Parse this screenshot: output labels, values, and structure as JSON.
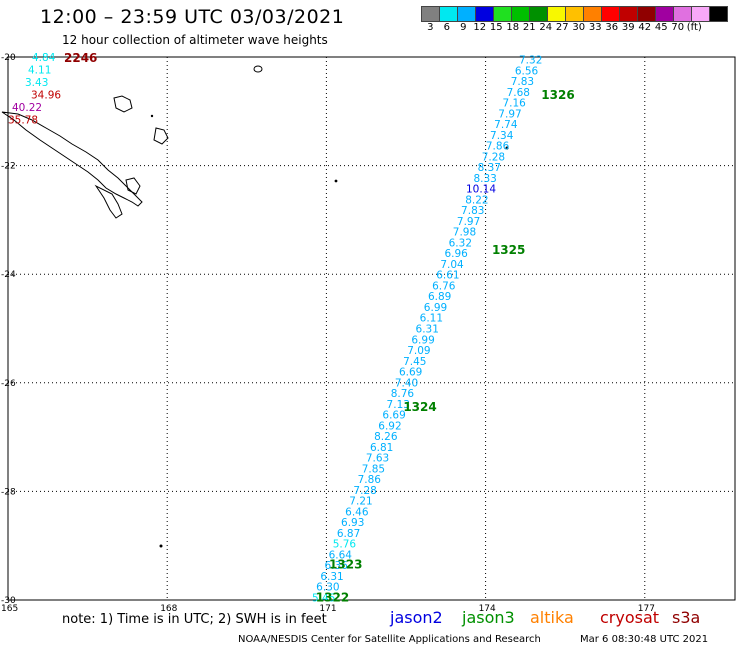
{
  "title": "12:00 – 23:59 UTC 03/03/2021",
  "subtitle": "12 hour collection of altimeter wave heights",
  "colorbar": {
    "colors": [
      "#808080",
      "#00e8f0",
      "#00b0ff",
      "#0000e0",
      "#20e020",
      "#00c000",
      "#009000",
      "#f8f800",
      "#ffc000",
      "#ff8000",
      "#ff0000",
      "#c00000",
      "#900000",
      "#a000a0",
      "#e070e0",
      "#f8a8f8",
      "#000000"
    ],
    "tick_labels": [
      "3",
      "6",
      "9",
      "12",
      "15",
      "18",
      "21",
      "24",
      "27",
      "30",
      "33",
      "36",
      "39",
      "42",
      "45",
      "70",
      "(ft)"
    ]
  },
  "axes": {
    "lat_labels": [
      "-20",
      "-22",
      "-24",
      "-26",
      "-28",
      "-30"
    ],
    "lat_values": [
      -20,
      -22,
      -24,
      -26,
      -28,
      -30
    ],
    "lon_labels": [
      "165",
      "168",
      "171",
      "174",
      "177"
    ],
    "lon_values": [
      165,
      168,
      171,
      174,
      177
    ],
    "lon_range": [
      165,
      178.7
    ],
    "lat_range": [
      -20,
      -30
    ]
  },
  "chart_data": {
    "type": "scatter",
    "track": {
      "values": [
        "7.32",
        "6.56",
        "7.83",
        "7.68",
        "7.16",
        "7.97",
        "7.74",
        "7.34",
        "7.86",
        "7.28",
        "8.37",
        "8.33",
        "10.14",
        "8.22",
        "7.83",
        "7.97",
        "7.98",
        "6.32",
        "6.96",
        "7.04",
        "6.61",
        "6.76",
        "6.89",
        "6.99",
        "6.11",
        "6.31",
        "6.99",
        "7.09",
        "7.45",
        "6.69",
        "7.40",
        "8.76",
        "7.13",
        "6.69",
        "6.92",
        "8.26",
        "6.81",
        "7.63",
        "7.85",
        "7.86",
        "7.28",
        "7.21",
        "6.46",
        "6.93",
        "6.87",
        "5.76",
        "6.64",
        "6.36",
        "6.31",
        "6.30",
        "5.45"
      ],
      "colors": [
        "#00b0ff",
        "#00b0ff",
        "#00b0ff",
        "#00b0ff",
        "#00b0ff",
        "#00b0ff",
        "#00b0ff",
        "#00b0ff",
        "#00b0ff",
        "#00b0ff",
        "#00b0ff",
        "#00b0ff",
        "#0000e0",
        "#00b0ff",
        "#00b0ff",
        "#00b0ff",
        "#00b0ff",
        "#00b0ff",
        "#00b0ff",
        "#00b0ff",
        "#00b0ff",
        "#00b0ff",
        "#00b0ff",
        "#00b0ff",
        "#00b0ff",
        "#00b0ff",
        "#00b0ff",
        "#00b0ff",
        "#00b0ff",
        "#00b0ff",
        "#00b0ff",
        "#00b0ff",
        "#00b0ff",
        "#00b0ff",
        "#00b0ff",
        "#00b0ff",
        "#00b0ff",
        "#00b0ff",
        "#00b0ff",
        "#00b0ff",
        "#00b0ff",
        "#00b0ff",
        "#00b0ff",
        "#00b0ff",
        "#00b0ff",
        "#00e8f0",
        "#00b0ff",
        "#00b0ff",
        "#00b0ff",
        "#00b0ff",
        "#00e8f0"
      ],
      "lat_start": -20.05,
      "lat_end": -29.95,
      "lon_start": 174.85,
      "lon_end": 170.95
    },
    "time_labels": [
      {
        "text": "1326",
        "lon": 175.05,
        "lat": -20.7,
        "color": "#008000"
      },
      {
        "text": "1325",
        "lon": 174.12,
        "lat": -23.55,
        "color": "#008000"
      },
      {
        "text": "1324",
        "lon": 172.45,
        "lat": -26.45,
        "color": "#008000"
      },
      {
        "text": "1323",
        "lon": 171.05,
        "lat": -29.35,
        "color": "#008000"
      },
      {
        "text": "1322",
        "lon": 170.8,
        "lat": -29.95,
        "color": "#008000"
      }
    ],
    "west_track": {
      "values": [
        "4.84",
        "4.11",
        "3.43",
        "34.96",
        "40.22",
        "35.78"
      ],
      "colors": [
        "#00e8f0",
        "#00e8f0",
        "#00e8f0",
        "#c00000",
        "#a000a0",
        "#c00000"
      ],
      "time": {
        "text": "2246",
        "color": "#900000"
      }
    }
  },
  "note": "note:  1) Time is in UTC;  2) SWH is in feet",
  "missions": [
    {
      "name": "jason2",
      "color": "#0000e0"
    },
    {
      "name": "jason3",
      "color": "#009000"
    },
    {
      "name": "altika",
      "color": "#ff8000"
    },
    {
      "name": "cryosat",
      "color": "#c00000"
    },
    {
      "name": "s3a",
      "color": "#900000"
    }
  ],
  "credit": "NOAA/NESDIS Center for Satellite Applications and Research",
  "generated": "Mar  6 08:30:48 UTC 2021"
}
